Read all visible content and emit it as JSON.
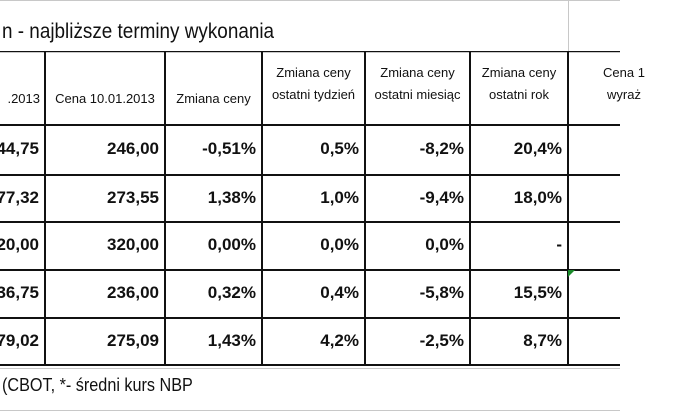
{
  "title": "n - najbliższe terminy wykonania",
  "table": {
    "headers": [
      [
        ".2013"
      ],
      [
        "Cena 10.01.2013"
      ],
      [
        "Zmiana ceny"
      ],
      [
        "Zmiana ceny",
        "ostatni tydzień"
      ],
      [
        "Zmiana ceny",
        "ostatni miesiąc"
      ],
      [
        "Zmiana ceny",
        "ostatni rok"
      ],
      [
        "Cena 1",
        "wyraż"
      ]
    ],
    "rows": [
      [
        "44,75",
        "246,00",
        "-0,51%",
        "0,5%",
        "-8,2%",
        "20,4%"
      ],
      [
        "77,32",
        "273,55",
        "1,38%",
        "1,0%",
        "-9,4%",
        "18,0%"
      ],
      [
        "20,00",
        "320,00",
        "0,00%",
        "0,0%",
        "0,0%",
        "-"
      ],
      [
        "36,75",
        "236,00",
        "0,32%",
        "0,4%",
        "-5,8%",
        "15,5%"
      ],
      [
        "79,02",
        "275,09",
        "1,43%",
        "4,2%",
        "-2,5%",
        "8,7%"
      ]
    ]
  },
  "footer": "(CBOT, *- średni kurs NBP"
}
